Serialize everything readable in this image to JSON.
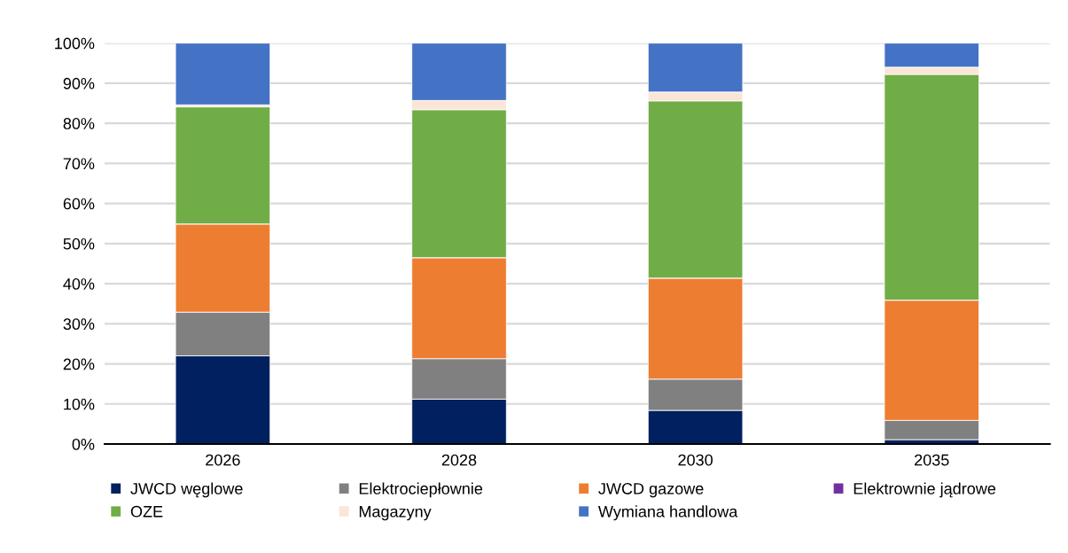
{
  "chart_data": {
    "type": "bar",
    "stacked": true,
    "categories": [
      "2026",
      "2028",
      "2030",
      "2035"
    ],
    "series": [
      {
        "name": "JWCD węglowe",
        "color": "#002060",
        "values": [
          22.0,
          11.2,
          8.4,
          1.1
        ]
      },
      {
        "name": "Elektrociepłownie",
        "color": "#808080",
        "values": [
          10.9,
          10.1,
          7.8,
          4.8
        ]
      },
      {
        "name": "JWCD gazowe",
        "color": "#ed7d31",
        "values": [
          22.0,
          25.2,
          25.2,
          30.0
        ]
      },
      {
        "name": "Elektrownie jądrowe",
        "color": "#7030a0",
        "values": [
          0,
          0,
          0,
          0
        ]
      },
      {
        "name": "OZE",
        "color": "#70ad47",
        "values": [
          29.2,
          36.9,
          44.2,
          56.3
        ]
      },
      {
        "name": "Magazyny",
        "color": "#fbe5d6",
        "values": [
          0.5,
          2.3,
          2.2,
          1.8
        ]
      },
      {
        "name": "Wymiana handlowa",
        "color": "#4472c4",
        "values": [
          15.4,
          14.3,
          12.2,
          6.0
        ]
      }
    ],
    "ylim": [
      0,
      100
    ],
    "yticks": [
      {
        "value": 0,
        "label": "0%"
      },
      {
        "value": 10,
        "label": "10%"
      },
      {
        "value": 20,
        "label": "20%"
      },
      {
        "value": 30,
        "label": "30%"
      },
      {
        "value": 40,
        "label": "40%"
      },
      {
        "value": 50,
        "label": "50%"
      },
      {
        "value": 60,
        "label": "60%"
      },
      {
        "value": 70,
        "label": "70%"
      },
      {
        "value": 80,
        "label": "80%"
      },
      {
        "value": 90,
        "label": "90%"
      },
      {
        "value": 100,
        "label": "100%"
      }
    ],
    "grid": "y",
    "legend": "bottom"
  }
}
